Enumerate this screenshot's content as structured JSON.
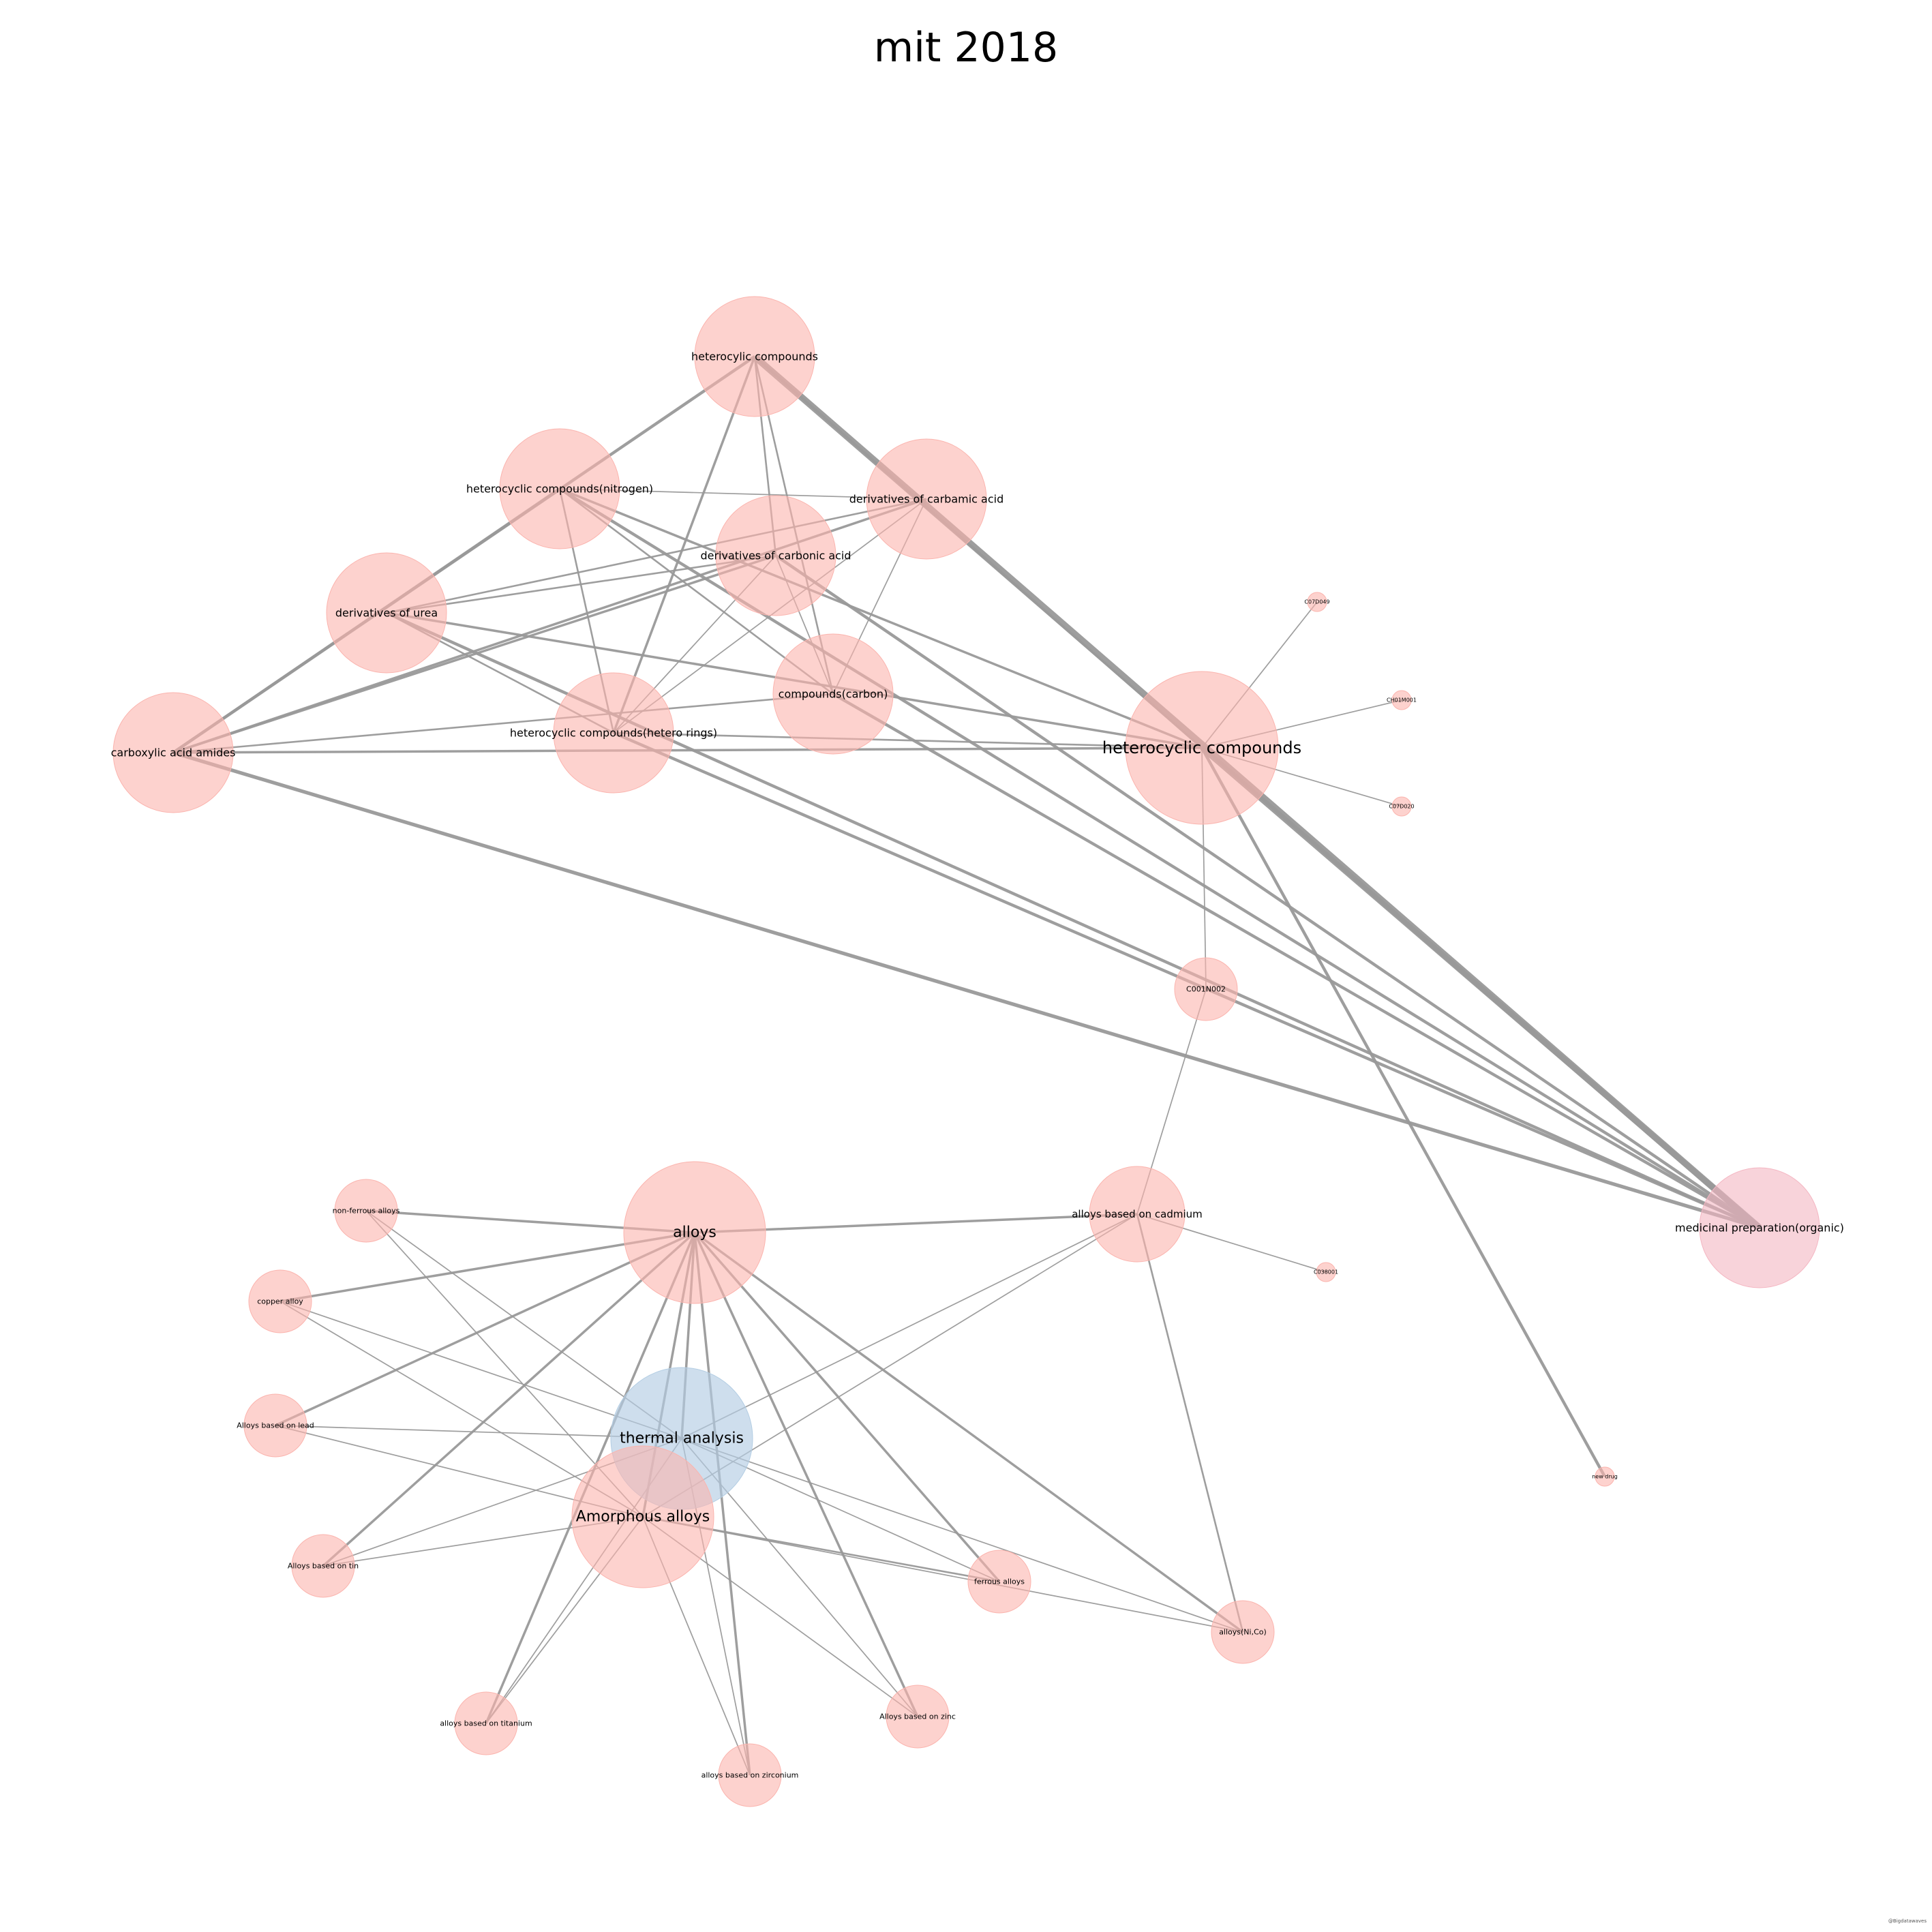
{
  "title": "mit 2018",
  "footer_text": "@Bigdatawaves",
  "colors": {
    "node_default": "#fbb4ae",
    "node_highlight": "#b3cde3",
    "node_target": "#f4b6c2",
    "edge": "#999999"
  },
  "nodes": [
    {
      "id": "heterocyclic-compounds-top",
      "label": "heterocylic compounds",
      "size": "large",
      "color": "node_default"
    },
    {
      "id": "heterocyclic-nitrogen",
      "label": "heterocyclic compounds(nitrogen)",
      "size": "large",
      "color": "node_default"
    },
    {
      "id": "derivatives-carbamic",
      "label": "derivatives of carbamic acid",
      "size": "large",
      "color": "node_default"
    },
    {
      "id": "derivatives-carbonic",
      "label": "derivatives of carbonic acid",
      "size": "large",
      "color": "node_default"
    },
    {
      "id": "derivatives-urea",
      "label": "derivatives of urea",
      "size": "large",
      "color": "node_default"
    },
    {
      "id": "compounds-carbon",
      "label": "compounds(carbon)",
      "size": "large",
      "color": "node_default"
    },
    {
      "id": "heterocyclic-hetero-rings",
      "label": "heterocyclic compounds(hetero rings)",
      "size": "large",
      "color": "node_default"
    },
    {
      "id": "carboxylic-acid-amides",
      "label": "carboxylic acid amides",
      "size": "large",
      "color": "node_default"
    },
    {
      "id": "heterocyclic-compounds-main",
      "label": "heterocyclic compounds",
      "size": "xlarge",
      "color": "node_default"
    },
    {
      "id": "c07d049",
      "label": "C07D049",
      "size": "tiny",
      "color": "node_default"
    },
    {
      "id": "c40m001",
      "label": "CH01M001",
      "size": "tiny",
      "color": "node_default"
    },
    {
      "id": "c07d020",
      "label": "C07D020",
      "size": "tiny",
      "color": "node_default"
    },
    {
      "id": "c001n002",
      "label": "C001N002",
      "size": "small",
      "color": "node_default"
    },
    {
      "id": "medicinal-organic",
      "label": "medicinal preparation(organic)",
      "size": "large",
      "color": "node_target"
    },
    {
      "id": "alloys",
      "label": "alloys",
      "size": "xlarge",
      "color": "node_default"
    },
    {
      "id": "non-ferrous-alloys",
      "label": "non-ferrous alloys",
      "size": "small",
      "color": "node_default"
    },
    {
      "id": "copper-alloy",
      "label": "copper alloy",
      "size": "small",
      "color": "node_default"
    },
    {
      "id": "alloys-lead",
      "label": "Alloys based on lead",
      "size": "small",
      "color": "node_default"
    },
    {
      "id": "alloys-tin",
      "label": "Alloys based on tin",
      "size": "small",
      "color": "node_default"
    },
    {
      "id": "alloys-titanium",
      "label": "alloys based on titanium",
      "size": "small",
      "color": "node_default"
    },
    {
      "id": "alloys-zirconium",
      "label": "alloys based on zirconium",
      "size": "small",
      "color": "node_default"
    },
    {
      "id": "alloys-zinc",
      "label": "Alloys based on zinc",
      "size": "small",
      "color": "node_default"
    },
    {
      "id": "ferrous-alloys",
      "label": "ferrous alloys",
      "size": "small",
      "color": "node_default"
    },
    {
      "id": "alloys-ni-co",
      "label": "alloys(Ni,Co)",
      "size": "small",
      "color": "node_default"
    },
    {
      "id": "alloys-cadmium",
      "label": "alloys based on cadmium",
      "size": "medium",
      "color": "node_default"
    },
    {
      "id": "c038001",
      "label": "C038001",
      "size": "tiny",
      "color": "node_default"
    },
    {
      "id": "thermal-analysis",
      "label": "thermal analysis",
      "size": "xlarge",
      "color": "node_highlight"
    },
    {
      "id": "amorphous-alloys",
      "label": "Amorphous alloys",
      "size": "xlarge",
      "color": "node_default"
    },
    {
      "id": "new-drug",
      "label": "new drug",
      "size": "tiny",
      "color": "node_default"
    }
  ],
  "edges": [
    {
      "source": "heterocyclic-compounds-top",
      "target": "medicinal-organic",
      "weight": 10
    },
    {
      "source": "heterocyclic-compounds-top",
      "target": "carboxylic-acid-amides",
      "weight": 4
    },
    {
      "source": "heterocyclic-compounds-top",
      "target": "heterocyclic-hetero-rings",
      "weight": 3
    },
    {
      "source": "heterocyclic-compounds-top",
      "target": "compounds-carbon",
      "weight": 2
    },
    {
      "source": "heterocyclic-compounds-top",
      "target": "derivatives-carbonic",
      "weight": 2
    },
    {
      "source": "heterocyclic-compounds-top",
      "target": "heterocyclic-compounds-main",
      "weight": 3
    },
    {
      "source": "heterocyclic-nitrogen",
      "target": "carboxylic-acid-amides",
      "weight": 4
    },
    {
      "source": "heterocyclic-nitrogen",
      "target": "medicinal-organic",
      "weight": 4
    },
    {
      "source": "heterocyclic-nitrogen",
      "target": "heterocyclic-compounds-main",
      "weight": 3
    },
    {
      "source": "heterocyclic-nitrogen",
      "target": "derivatives-carbamic",
      "weight": 1
    },
    {
      "source": "heterocyclic-nitrogen",
      "target": "compounds-carbon",
      "weight": 2
    },
    {
      "source": "heterocyclic-nitrogen",
      "target": "heterocyclic-hetero-rings",
      "weight": 2
    },
    {
      "source": "derivatives-carbamic",
      "target": "derivatives-urea",
      "weight": 2
    },
    {
      "source": "derivatives-carbamic",
      "target": "carboxylic-acid-amides",
      "weight": 3
    },
    {
      "source": "derivatives-carbamic",
      "target": "heterocyclic-hetero-rings",
      "weight": 1
    },
    {
      "source": "derivatives-carbamic",
      "target": "compounds-carbon",
      "weight": 1
    },
    {
      "source": "derivatives-carbonic",
      "target": "derivatives-urea",
      "weight": 2
    },
    {
      "source": "derivatives-carbonic",
      "target": "carboxylic-acid-amides",
      "weight": 3
    },
    {
      "source": "derivatives-carbonic",
      "target": "heterocyclic-hetero-rings",
      "weight": 1
    },
    {
      "source": "derivatives-carbonic",
      "target": "compounds-carbon",
      "weight": 1
    },
    {
      "source": "derivatives-carbonic",
      "target": "medicinal-organic",
      "weight": 4
    },
    {
      "source": "derivatives-urea",
      "target": "heterocyclic-compounds-main",
      "weight": 3
    },
    {
      "source": "derivatives-urea",
      "target": "medicinal-organic",
      "weight": 4
    },
    {
      "source": "derivatives-urea",
      "target": "heterocyclic-hetero-rings",
      "weight": 2
    },
    {
      "source": "carboxylic-acid-amides",
      "target": "heterocyclic-compounds-main",
      "weight": 3
    },
    {
      "source": "carboxylic-acid-amides",
      "target": "compounds-carbon",
      "weight": 2
    },
    {
      "source": "carboxylic-acid-amides",
      "target": "medicinal-organic",
      "weight": 5
    },
    {
      "source": "heterocyclic-hetero-rings",
      "target": "heterocyclic-compounds-main",
      "weight": 2
    },
    {
      "source": "heterocyclic-hetero-rings",
      "target": "medicinal-organic",
      "weight": 4
    },
    {
      "source": "compounds-carbon",
      "target": "medicinal-organic",
      "weight": 4
    },
    {
      "source": "heterocyclic-compounds-main",
      "target": "medicinal-organic",
      "weight": 8
    },
    {
      "source": "heterocyclic-compounds-main",
      "target": "c07d049",
      "weight": 1
    },
    {
      "source": "heterocyclic-compounds-main",
      "target": "c40m001",
      "weight": 1
    },
    {
      "source": "heterocyclic-compounds-main",
      "target": "c07d020",
      "weight": 1
    },
    {
      "source": "heterocyclic-compounds-main",
      "target": "c001n002",
      "weight": 1
    },
    {
      "source": "heterocyclic-compounds-main",
      "target": "new-drug",
      "weight": 4
    },
    {
      "source": "c001n002",
      "target": "alloys-cadmium",
      "weight": 1
    },
    {
      "source": "alloys",
      "target": "non-ferrous-alloys",
      "weight": 3
    },
    {
      "source": "alloys",
      "target": "copper-alloy",
      "weight": 3
    },
    {
      "source": "alloys",
      "target": "alloys-lead",
      "weight": 3
    },
    {
      "source": "alloys",
      "target": "alloys-tin",
      "weight": 3
    },
    {
      "source": "alloys",
      "target": "alloys-titanium",
      "weight": 3
    },
    {
      "source": "alloys",
      "target": "alloys-zirconium",
      "weight": 3
    },
    {
      "source": "alloys",
      "target": "alloys-zinc",
      "weight": 3
    },
    {
      "source": "alloys",
      "target": "ferrous-alloys",
      "weight": 3
    },
    {
      "source": "alloys",
      "target": "alloys-ni-co",
      "weight": 3
    },
    {
      "source": "alloys",
      "target": "alloys-cadmium",
      "weight": 3
    },
    {
      "source": "alloys",
      "target": "thermal-analysis",
      "weight": 3
    },
    {
      "source": "alloys",
      "target": "amorphous-alloys",
      "weight": 3
    },
    {
      "source": "alloys-cadmium",
      "target": "c038001",
      "weight": 1
    },
    {
      "source": "alloys-cadmium",
      "target": "alloys-ni-co",
      "weight": 2
    },
    {
      "source": "alloys-cadmium",
      "target": "thermal-analysis",
      "weight": 1
    },
    {
      "source": "alloys-cadmium",
      "target": "amorphous-alloys",
      "weight": 1
    },
    {
      "source": "thermal-analysis",
      "target": "copper-alloy",
      "weight": 1
    },
    {
      "source": "thermal-analysis",
      "target": "alloys-lead",
      "weight": 1
    },
    {
      "source": "thermal-analysis",
      "target": "alloys-tin",
      "weight": 1
    },
    {
      "source": "thermal-analysis",
      "target": "alloys-titanium",
      "weight": 1
    },
    {
      "source": "thermal-analysis",
      "target": "alloys-zirconium",
      "weight": 1
    },
    {
      "source": "thermal-analysis",
      "target": "alloys-zinc",
      "weight": 1
    },
    {
      "source": "thermal-analysis",
      "target": "ferrous-alloys",
      "weight": 1
    },
    {
      "source": "thermal-analysis",
      "target": "alloys-ni-co",
      "weight": 1
    },
    {
      "source": "thermal-analysis",
      "target": "non-ferrous-alloys",
      "weight": 1
    },
    {
      "source": "amorphous-alloys",
      "target": "non-ferrous-alloys",
      "weight": 1
    },
    {
      "source": "amorphous-alloys",
      "target": "copper-alloy",
      "weight": 1
    },
    {
      "source": "amorphous-alloys",
      "target": "alloys-lead",
      "weight": 1
    },
    {
      "source": "amorphous-alloys",
      "target": "alloys-tin",
      "weight": 1
    },
    {
      "source": "amorphous-alloys",
      "target": "alloys-titanium",
      "weight": 1
    },
    {
      "source": "amorphous-alloys",
      "target": "alloys-zirconium",
      "weight": 1
    },
    {
      "source": "amorphous-alloys",
      "target": "alloys-zinc",
      "weight": 1
    },
    {
      "source": "amorphous-alloys",
      "target": "ferrous-alloys",
      "weight": 2
    },
    {
      "source": "amorphous-alloys",
      "target": "alloys-ni-co",
      "weight": 1
    }
  ]
}
